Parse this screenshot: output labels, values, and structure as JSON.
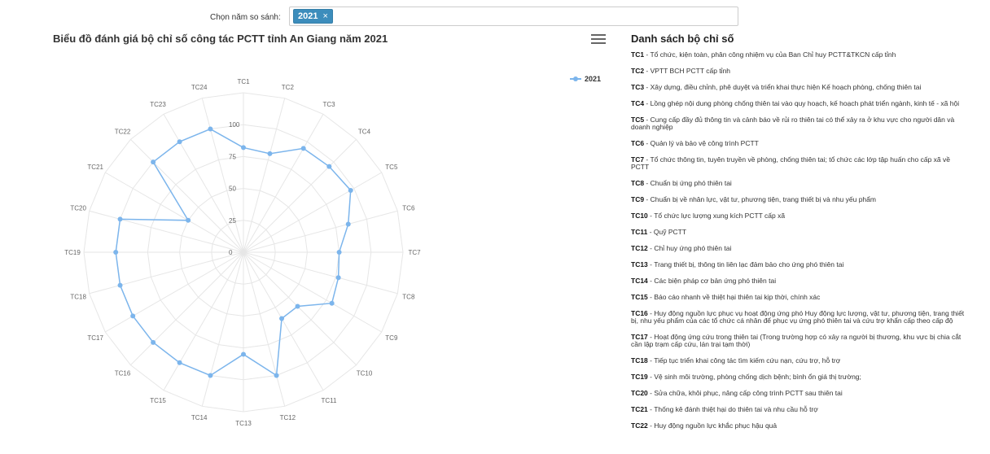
{
  "filter": {
    "label": "Chọn năm so sánh:",
    "selected_year": "2021",
    "remove_icon": "×"
  },
  "chart_menu_icon": "hamburger-menu-icon",
  "chart_data": {
    "type": "radar",
    "title": "Biểu đồ đánh giá bộ chỉ số công tác PCTT tỉnh An Giang năm 2021",
    "categories": [
      "TC1",
      "TC2",
      "TC3",
      "TC4",
      "TC5",
      "TC6",
      "TC7",
      "TC8",
      "TC9",
      "TC10",
      "TC11",
      "TC12",
      "TC13",
      "TC14",
      "TC15",
      "TC16",
      "TC17",
      "TC18",
      "TC19",
      "TC20",
      "TC21",
      "TC22",
      "TC23",
      "TC24"
    ],
    "radial_ticks": [
      "0",
      "25",
      "50",
      "75",
      "100"
    ],
    "rmax": 125,
    "series": [
      {
        "name": "2021",
        "color": "#7cb5ec",
        "values": [
          82,
          80,
          94,
          95,
          97,
          85,
          75,
          77,
          80,
          60,
          60,
          100,
          80,
          100,
          100,
          100,
          100,
          100,
          100,
          100,
          50,
          100,
          100,
          100
        ]
      }
    ],
    "legend_position": "top-right",
    "grid": true
  },
  "indicator_list": {
    "title": "Danh sách bộ chỉ số",
    "items": [
      {
        "code": "TC1",
        "text": " - Tổ chức, kiện toàn, phân công nhiệm vụ của Ban Chỉ huy PCTT&TKCN cấp tỉnh"
      },
      {
        "code": "TC2",
        "text": " - VPTT BCH PCTT cấp tỉnh"
      },
      {
        "code": "TC3",
        "text": " - Xây dựng, điều chỉnh, phê duyệt và triển khai thực hiện Kế hoạch phòng, chống thiên tai"
      },
      {
        "code": "TC4",
        "text": " - Lồng ghép nội dung phòng chống thiên tai vào quy hoạch, kế hoạch phát triển ngành, kinh tế - xã hội"
      },
      {
        "code": "TC5",
        "text": " - Cung cấp đầy đủ thông tin và cảnh báo về rủi ro thiên tai có thể xảy ra ở khu vực cho người dân và doanh nghiệp"
      },
      {
        "code": "TC6",
        "text": " - Quản lý và bảo vệ công trình PCTT"
      },
      {
        "code": "TC7",
        "text": " - Tổ chức thông tin, tuyên truyền về phòng, chống thiên tai; tổ chức các lớp tập huấn cho cấp xã về PCTT"
      },
      {
        "code": "TC8",
        "text": " - Chuẩn bị ứng phó thiên tai"
      },
      {
        "code": "TC9",
        "text": " - Chuẩn bị về nhân lực, vật tư, phương tiện, trang thiết bị và nhu yếu phẩm"
      },
      {
        "code": "TC10",
        "text": " - Tổ chức lực lượng xung kích PCTT cấp xã"
      },
      {
        "code": "TC11",
        "text": " - Quỹ PCTT"
      },
      {
        "code": "TC12",
        "text": " - Chỉ huy ứng phó thiên tai"
      },
      {
        "code": "TC13",
        "text": " - Trang thiết bị, thông tin liên lạc đảm bảo cho ứng phó thiên tai"
      },
      {
        "code": "TC14",
        "text": " - Các biện pháp cơ bản ứng phó thiên tai"
      },
      {
        "code": "TC15",
        "text": " - Báo cáo nhanh về thiệt hại thiên tai kịp thời, chính xác"
      },
      {
        "code": "TC16",
        "text": " - Huy động nguồn lực phục vụ hoạt động ứng phó Huy động lực lượng, vật tư, phương tiện, trang thiết bị, nhu yếu phẩm của các tổ chức cá nhân để phục vụ ứng phó thiên tai và cứu trợ khẩn cấp theo cấp độ"
      },
      {
        "code": "TC17",
        "text": " - Hoạt động ứng cứu trong thiên tai (Trong trường hợp có xảy ra người bị thương, khu vực bị chia cắt cần lập trạm cấp cứu, lán trại tạm thời)"
      },
      {
        "code": "TC18",
        "text": " - Tiếp tục triển khai công tác tìm kiếm cứu nạn, cứu trợ, hỗ trợ"
      },
      {
        "code": "TC19",
        "text": " - Vệ sinh môi trường, phòng chống dịch bệnh; bình ổn giá thị trường;"
      },
      {
        "code": "TC20",
        "text": " - Sửa chữa, khôi phục, nâng cấp công trình PCTT sau thiên tai"
      },
      {
        "code": "TC21",
        "text": " - Thống kê đánh thiệt hại do thiên tai và nhu cầu hỗ trợ"
      },
      {
        "code": "TC22",
        "text": " - Huy động nguồn lực khắc phục hậu quả"
      }
    ]
  }
}
